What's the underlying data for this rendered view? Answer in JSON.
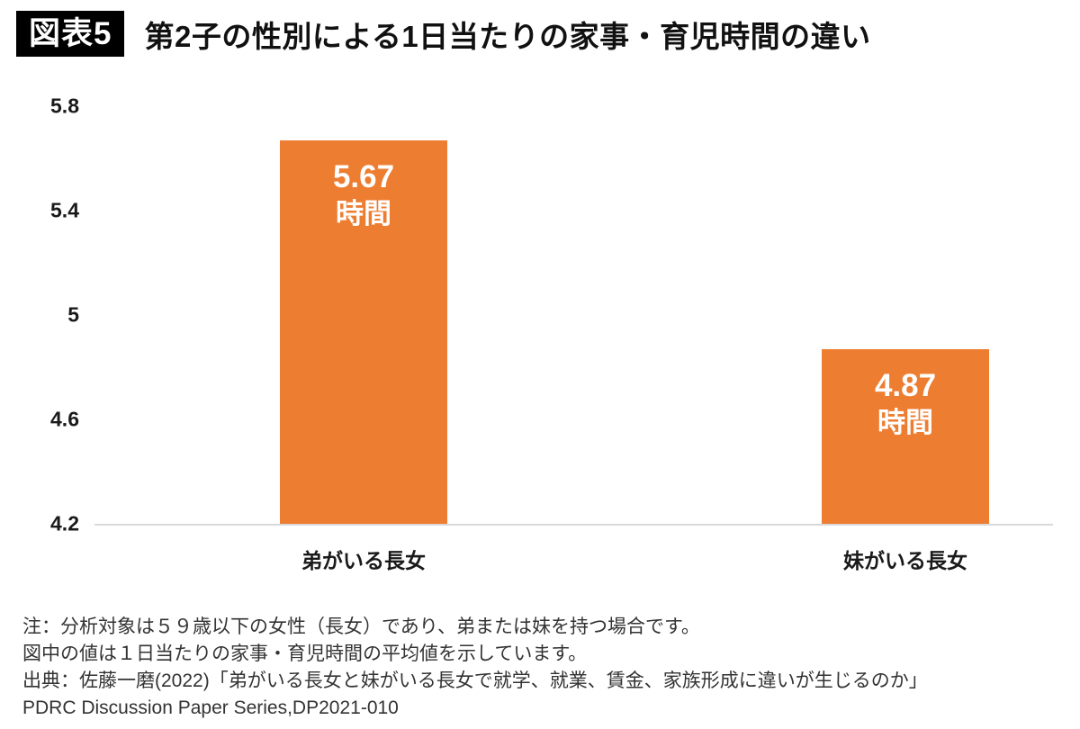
{
  "header": {
    "badge": "図表5",
    "title": "第2子の性別による1日当たりの家事・育児時間の違い"
  },
  "chart_data": {
    "type": "bar",
    "categories": [
      "弟がいる長女",
      "妹がいる長女"
    ],
    "values": [
      5.67,
      4.87
    ],
    "value_labels": [
      "5.67",
      "4.87"
    ],
    "unit_label": "時間",
    "yticks": [
      "5.8",
      "5.4",
      "5",
      "4.6",
      "4.2"
    ],
    "ylim": [
      4.2,
      5.8
    ],
    "grid": false,
    "legend": "none",
    "bar_color": "#ED7D31",
    "axis_line_color": "#D9D9D9"
  },
  "notes": {
    "lines": [
      "注：分析対象は５９歳以下の女性（長女）であり、弟または妹を持つ場合です。",
      "図中の値は１日当たりの家事・育児時間の平均値を示しています。",
      "出典：佐藤一磨(2022)「弟がいる長女と妹がいる長女で就学、就業、賃金、家族形成に違いが生じるのか」",
      "PDRC Discussion Paper Series,DP2021-010"
    ]
  }
}
